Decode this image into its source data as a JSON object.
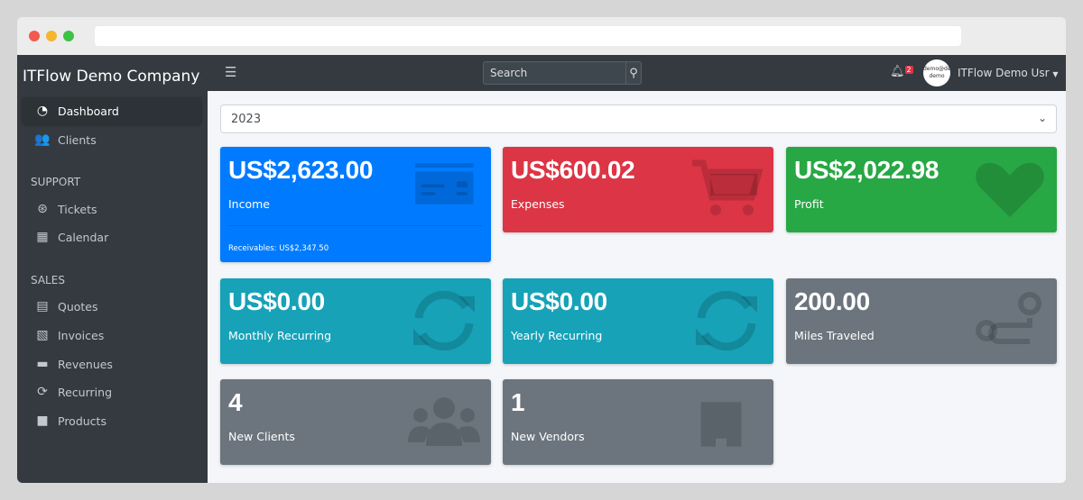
{
  "sidebar": {
    "brand": "ITFlow Demo Company",
    "items": [
      {
        "label": "Dashboard",
        "icon": "tachometer-icon"
      },
      {
        "label": "Clients",
        "icon": "users-icon"
      }
    ],
    "support": {
      "heading": "SUPPORT",
      "items": [
        {
          "label": "Tickets",
          "icon": "life-ring-icon"
        },
        {
          "label": "Calendar",
          "icon": "calendar-icon"
        }
      ]
    },
    "sales": {
      "heading": "SALES",
      "items": [
        {
          "label": "Quotes",
          "icon": "file-icon"
        },
        {
          "label": "Invoices",
          "icon": "file-invoice-icon"
        },
        {
          "label": "Revenues",
          "icon": "credit-card-icon"
        },
        {
          "label": "Recurring",
          "icon": "sync-icon"
        },
        {
          "label": "Products",
          "icon": "box-icon"
        }
      ]
    }
  },
  "navbar": {
    "search_placeholder": "Search",
    "notifications": "2",
    "avatar_text": "demo@demo demo",
    "user": "ITFlow Demo Usr"
  },
  "year_select": "2023",
  "cards": [
    {
      "value": "US$2,623.00",
      "label": "Income",
      "footer": "Receivables: US$2,347.50",
      "color": "#007bff"
    },
    {
      "value": "US$600.02",
      "label": "Expenses",
      "color": "#dc3545"
    },
    {
      "value": "US$2,022.98",
      "label": "Profit",
      "color": "#28a745"
    },
    {
      "value": "US$0.00",
      "label": "Monthly Recurring",
      "color": "#17a2b8"
    },
    {
      "value": "US$0.00",
      "label": "Yearly Recurring",
      "color": "#17a2b8"
    },
    {
      "value": "200.00",
      "label": "Miles Traveled",
      "color": "#6c757d"
    },
    {
      "value": "4",
      "label": "New Clients",
      "color": "#6c757d"
    },
    {
      "value": "1",
      "label": "New Vendors",
      "color": "#6c757d"
    }
  ]
}
